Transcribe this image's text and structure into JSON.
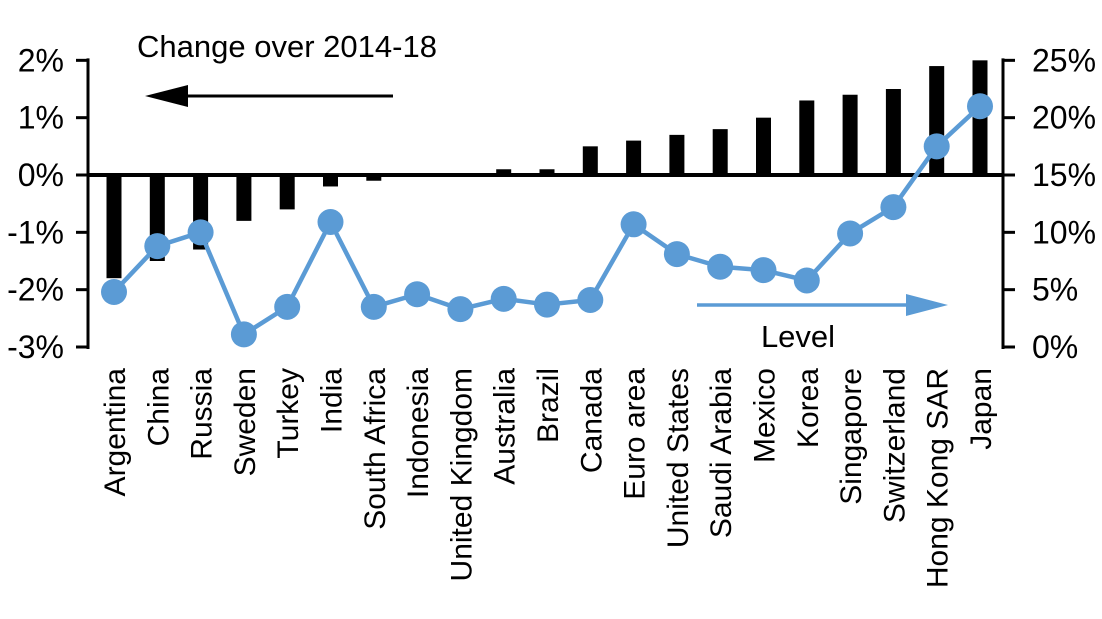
{
  "chart_data": {
    "type": "bar",
    "subtype": "dual-axis-bar-line",
    "title": "",
    "categories": [
      "Argentina",
      "China",
      "Russia",
      "Sweden",
      "Turkey",
      "India",
      "South Africa",
      "Indonesia",
      "United Kingdom",
      "Australia",
      "Brazil",
      "Canada",
      "Euro area",
      "United States",
      "Saudi Arabia",
      "Mexico",
      "Korea",
      "Singapore",
      "Switzerland",
      "Hong Kong SAR",
      "Japan"
    ],
    "series": [
      {
        "name": "Change over 2014-18",
        "type": "bar",
        "axis": "left",
        "values": [
          -1.8,
          -1.5,
          -1.3,
          -0.8,
          -0.6,
          -0.2,
          -0.1,
          0.0,
          0.0,
          0.1,
          0.1,
          0.5,
          0.6,
          0.7,
          0.8,
          1.0,
          1.3,
          1.4,
          1.5,
          1.9,
          2.0
        ]
      },
      {
        "name": "Level",
        "type": "line",
        "axis": "right",
        "values": [
          4.8,
          8.8,
          10.0,
          1.1,
          3.5,
          10.9,
          3.5,
          4.6,
          3.3,
          4.2,
          3.7,
          4.1,
          10.7,
          8.1,
          7.0,
          6.7,
          5.8,
          9.9,
          12.2,
          17.5,
          21.0
        ]
      }
    ],
    "left_axis": {
      "tick_labels": [
        "2%",
        "1%",
        "0%",
        "-1%",
        "-2%",
        "-3%"
      ],
      "tick_values": [
        2,
        1,
        0,
        -1,
        -2,
        -3
      ],
      "min": -3,
      "max": 2
    },
    "right_axis": {
      "tick_labels": [
        "25%",
        "20%",
        "15%",
        "10%",
        "5%",
        "0%"
      ],
      "tick_values": [
        25,
        20,
        15,
        10,
        5,
        0
      ],
      "min": 0,
      "max": 25
    },
    "annotations": {
      "bar_series_label": "Change over 2014-18",
      "bar_arrow_direction": "left",
      "line_series_label": "Level",
      "line_arrow_direction": "right"
    },
    "legend_position": "in-plot annotations",
    "grid": "off",
    "colors": {
      "bar": "#000000",
      "line": "#5B9BD5",
      "axis": "#000000",
      "background": "#ffffff"
    }
  }
}
